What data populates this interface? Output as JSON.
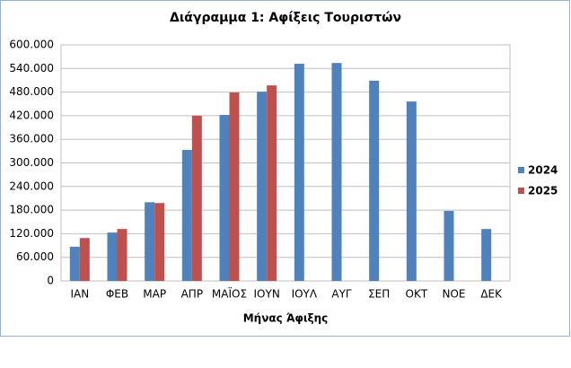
{
  "chart_data": {
    "type": "bar",
    "title": "Διάγραμμα 1: Αφίξεις Τουριστών",
    "x_label": "Μήνας Άφιξης",
    "categories": [
      "ΙΑΝ",
      "ΦΕΒ",
      "ΜΑΡ",
      "ΑΠΡ",
      "ΜΑΪΟΣ",
      "ΙΟΥΝ",
      "ΙΟΥΛ",
      "ΑΥΓ",
      "ΣΕΠ",
      "ΟΚΤ",
      "ΝΟΕ",
      "ΔΕΚ"
    ],
    "series": [
      {
        "name": "2024",
        "color": "#4f81bd",
        "values": [
          87000,
          123000,
          200000,
          333000,
          422000,
          481000,
          552000,
          554000,
          509000,
          456000,
          178000,
          132000
        ]
      },
      {
        "name": "2025",
        "color": "#c0504d",
        "values": [
          109000,
          132000,
          198000,
          420000,
          479000,
          497000,
          null,
          null,
          null,
          null,
          null,
          null
        ]
      }
    ],
    "ylim": [
      0,
      600000
    ],
    "yticks": [
      0,
      {
        "value": 60000,
        "label": "60.000"
      },
      {
        "value": 120000,
        "label": "120.000"
      },
      {
        "value": 180000,
        "label": "180.000"
      },
      {
        "value": 240000,
        "label": "240.000"
      },
      {
        "value": 300000,
        "label": "300.000"
      },
      {
        "value": 360000,
        "label": "360.000"
      },
      {
        "value": 420000,
        "label": "420.000"
      },
      {
        "value": 480000,
        "label": "480.000"
      },
      {
        "value": 540000,
        "label": "540.000"
      },
      {
        "value": 600000,
        "label": "600.000"
      }
    ],
    "grid": true,
    "legend": "right"
  }
}
